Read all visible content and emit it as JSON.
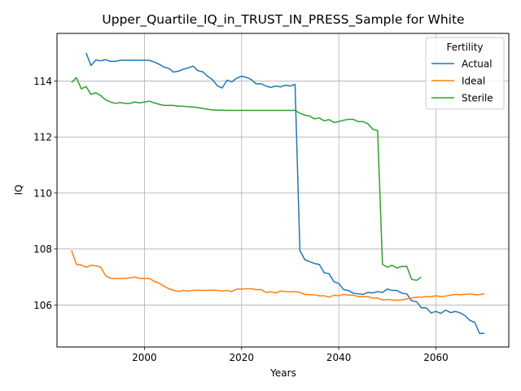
{
  "chart_data": {
    "type": "line",
    "title": "Upper_Quartile_IQ_in_TRUST_IN_PRESS_Sample for White",
    "xlabel": "Years",
    "ylabel": "IQ",
    "xlim": [
      2082,
      2075
    ],
    "xlim_note": "",
    "xrange": [
      1982,
      2075
    ],
    "ylim": [
      104.5,
      115.7
    ],
    "xticks": [
      2000,
      2020,
      2040,
      2060
    ],
    "yticks": [
      106,
      108,
      110,
      112,
      114
    ],
    "grid": true,
    "legend": {
      "title": "Fertility",
      "position": "top-right"
    },
    "series": [
      {
        "name": "Actual",
        "color": "#1f77b4",
        "x": [
          1988,
          1989,
          1990,
          1991,
          1992,
          1993,
          1994,
          1995,
          1996,
          1997,
          1998,
          1999,
          2000,
          2001,
          2002,
          2003,
          2004,
          2005,
          2006,
          2007,
          2008,
          2009,
          2010,
          2011,
          2012,
          2013,
          2014,
          2015,
          2016,
          2017,
          2018,
          2019,
          2020,
          2021,
          2022,
          2023,
          2024,
          2025,
          2026,
          2027,
          2028,
          2029,
          2030,
          2031,
          2032,
          2033,
          2034,
          2035,
          2036,
          2037,
          2038,
          2039,
          2040,
          2041,
          2042,
          2043,
          2044,
          2045,
          2046,
          2047,
          2048,
          2049,
          2050,
          2051,
          2052,
          2053,
          2054,
          2055,
          2056,
          2057,
          2058,
          2059,
          2060,
          2061,
          2062,
          2063,
          2064,
          2065,
          2066,
          2067,
          2068,
          2069,
          2070
        ],
        "y": [
          115.0,
          114.55,
          114.75,
          114.72,
          114.76,
          114.7,
          114.7,
          114.74,
          114.74,
          114.74,
          114.74,
          114.74,
          114.74,
          114.74,
          114.68,
          114.6,
          114.5,
          114.45,
          114.32,
          114.35,
          114.42,
          114.47,
          114.53,
          114.37,
          114.33,
          114.17,
          114.05,
          113.83,
          113.75,
          114.03,
          113.97,
          114.1,
          114.17,
          114.13,
          114.05,
          113.9,
          113.9,
          113.82,
          113.77,
          113.82,
          113.79,
          113.85,
          113.82,
          113.88,
          107.95,
          107.62,
          107.55,
          107.48,
          107.45,
          107.15,
          107.12,
          106.83,
          106.77,
          106.55,
          106.52,
          106.42,
          106.4,
          106.38,
          106.45,
          106.43,
          106.48,
          106.45,
          106.57,
          106.52,
          106.52,
          106.42,
          106.4,
          106.15,
          106.12,
          105.9,
          105.9,
          105.72,
          105.77,
          105.7,
          105.82,
          105.73,
          105.77,
          105.72,
          105.62,
          105.45,
          105.38,
          104.98,
          104.99
        ]
      },
      {
        "name": "Ideal",
        "color": "#ff7f0e",
        "x": [
          1985,
          1986,
          1987,
          1988,
          1989,
          1990,
          1991,
          1992,
          1993,
          1994,
          1995,
          1996,
          1997,
          1998,
          1999,
          2000,
          2001,
          2002,
          2003,
          2004,
          2005,
          2006,
          2007,
          2008,
          2009,
          2010,
          2011,
          2012,
          2013,
          2014,
          2015,
          2016,
          2017,
          2018,
          2019,
          2020,
          2021,
          2022,
          2023,
          2024,
          2025,
          2026,
          2027,
          2028,
          2029,
          2030,
          2031,
          2032,
          2033,
          2034,
          2035,
          2036,
          2037,
          2038,
          2039,
          2040,
          2041,
          2042,
          2043,
          2044,
          2045,
          2046,
          2047,
          2048,
          2049,
          2050,
          2051,
          2052,
          2053,
          2054,
          2055,
          2056,
          2057,
          2058,
          2059,
          2060,
          2061,
          2062,
          2063,
          2064,
          2065,
          2066,
          2067,
          2068,
          2069,
          2070
        ],
        "y": [
          107.95,
          107.45,
          107.43,
          107.35,
          107.42,
          107.4,
          107.35,
          107.05,
          106.95,
          106.95,
          106.95,
          106.95,
          106.97,
          107.0,
          106.95,
          106.95,
          106.95,
          106.85,
          106.78,
          106.68,
          106.58,
          106.53,
          106.48,
          106.52,
          106.5,
          106.52,
          106.53,
          106.52,
          106.52,
          106.53,
          106.52,
          106.5,
          106.52,
          106.48,
          106.57,
          106.57,
          106.58,
          106.58,
          106.55,
          106.55,
          106.45,
          106.47,
          106.43,
          106.5,
          106.48,
          106.47,
          106.48,
          106.45,
          106.38,
          106.37,
          106.36,
          106.33,
          106.33,
          106.28,
          106.35,
          106.33,
          106.38,
          106.35,
          106.35,
          106.3,
          106.3,
          106.3,
          106.25,
          106.25,
          106.18,
          106.2,
          106.18,
          106.17,
          106.18,
          106.22,
          106.25,
          106.28,
          106.28,
          106.3,
          106.3,
          106.33,
          106.3,
          106.32,
          106.35,
          106.38,
          106.37,
          106.38,
          106.4,
          106.37,
          106.37,
          106.4
        ]
      },
      {
        "name": "Sterile",
        "color": "#2ca02c",
        "x": [
          1985,
          1986,
          1987,
          1988,
          1989,
          1990,
          1991,
          1992,
          1993,
          1994,
          1995,
          1996,
          1997,
          1998,
          1999,
          2000,
          2001,
          2002,
          2003,
          2004,
          2005,
          2006,
          2007,
          2008,
          2009,
          2010,
          2011,
          2012,
          2013,
          2014,
          2015,
          2016,
          2017,
          2018,
          2019,
          2020,
          2021,
          2022,
          2023,
          2024,
          2025,
          2026,
          2027,
          2028,
          2029,
          2030,
          2031,
          2032,
          2033,
          2034,
          2035,
          2036,
          2037,
          2038,
          2039,
          2040,
          2041,
          2042,
          2043,
          2044,
          2045,
          2046,
          2047,
          2048,
          2049,
          2050,
          2051,
          2052,
          2053,
          2054,
          2055,
          2056,
          2057
        ],
        "y": [
          113.95,
          114.12,
          113.72,
          113.8,
          113.52,
          113.58,
          113.48,
          113.33,
          113.25,
          113.2,
          113.23,
          113.2,
          113.2,
          113.25,
          113.22,
          113.25,
          113.28,
          113.22,
          113.17,
          113.13,
          113.13,
          113.13,
          113.1,
          113.1,
          113.08,
          113.07,
          113.05,
          113.02,
          112.99,
          112.97,
          112.96,
          112.96,
          112.95,
          112.95,
          112.95,
          112.95,
          112.95,
          112.95,
          112.95,
          112.95,
          112.95,
          112.95,
          112.95,
          112.95,
          112.95,
          112.95,
          112.95,
          112.85,
          112.78,
          112.75,
          112.65,
          112.68,
          112.58,
          112.62,
          112.52,
          112.55,
          112.6,
          112.63,
          112.63,
          112.55,
          112.55,
          112.47,
          112.28,
          112.23,
          107.45,
          107.35,
          107.42,
          107.32,
          107.38,
          107.38,
          106.92,
          106.88,
          107.0
        ]
      }
    ]
  }
}
